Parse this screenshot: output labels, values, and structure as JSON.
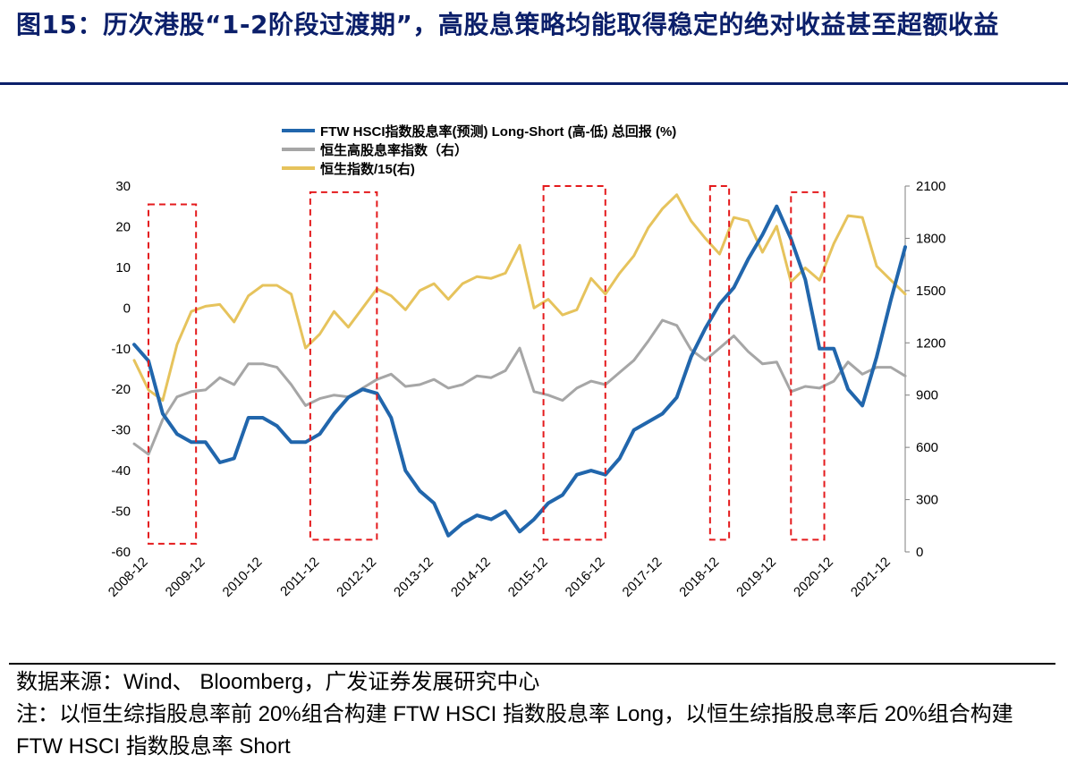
{
  "header": {
    "title": "图15：历次港股“1-2阶段过渡期”，高股息策略均能取得稳定的绝对收益甚至超额收益"
  },
  "footer": {
    "source": "数据来源：Wind、 Bloomberg，广发证券发展研究中心",
    "note": "注：以恒生综指股息率前 20%组合构建 FTW HSCI 指数股息率 Long，以恒生综指股息率后 20%组合构建 FTW HSCI 指数股息率 Short"
  },
  "colors": {
    "long_short": "#2166ac",
    "hsci_dividend_yield_index": "#a6a6a6",
    "hang_seng_div15": "#e6c35c",
    "highlight_box": "#e41a1c"
  },
  "chart_data": {
    "type": "line",
    "x_tick_labels": [
      "2008-12",
      "2009-12",
      "2010-12",
      "2011-12",
      "2012-12",
      "2013-12",
      "2014-12",
      "2015-12",
      "2016-12",
      "2017-12",
      "2018-12",
      "2019-12",
      "2020-12",
      "2021-12"
    ],
    "x_range": [
      "2008-09",
      "2022-03"
    ],
    "y_left": {
      "ylim": [
        -60,
        30
      ],
      "ticks": [
        30,
        20,
        10,
        0,
        -10,
        -20,
        -30,
        -40,
        -50,
        -60
      ]
    },
    "y_right": {
      "ylim": [
        0,
        2100
      ],
      "ticks": [
        2100,
        1800,
        1500,
        1200,
        900,
        600,
        300,
        0
      ]
    },
    "legend_position": "top-center",
    "series": [
      {
        "name": "FTW HSCI指数股息率(预测) Long-Short (高-低) 总回报 (%)",
        "axis": "left",
        "points": [
          [
            "2008-09",
            -9
          ],
          [
            "2008-12",
            -13
          ],
          [
            "2009-03",
            -26
          ],
          [
            "2009-06",
            -31
          ],
          [
            "2009-09",
            -33
          ],
          [
            "2009-12",
            -33
          ],
          [
            "2010-03",
            -38
          ],
          [
            "2010-06",
            -37
          ],
          [
            "2010-09",
            -27
          ],
          [
            "2010-12",
            -27
          ],
          [
            "2011-03",
            -29
          ],
          [
            "2011-06",
            -33
          ],
          [
            "2011-09",
            -33
          ],
          [
            "2011-12",
            -31
          ],
          [
            "2012-03",
            -26
          ],
          [
            "2012-06",
            -22
          ],
          [
            "2012-09",
            -20
          ],
          [
            "2012-12",
            -21
          ],
          [
            "2013-03",
            -27
          ],
          [
            "2013-06",
            -40
          ],
          [
            "2013-09",
            -45
          ],
          [
            "2013-12",
            -48
          ],
          [
            "2014-03",
            -56
          ],
          [
            "2014-06",
            -53
          ],
          [
            "2014-09",
            -51
          ],
          [
            "2014-12",
            -52
          ],
          [
            "2015-03",
            -50
          ],
          [
            "2015-06",
            -55
          ],
          [
            "2015-09",
            -52
          ],
          [
            "2015-12",
            -48
          ],
          [
            "2016-03",
            -46
          ],
          [
            "2016-06",
            -41
          ],
          [
            "2016-09",
            -40
          ],
          [
            "2016-12",
            -41
          ],
          [
            "2017-03",
            -37
          ],
          [
            "2017-06",
            -30
          ],
          [
            "2017-09",
            -28
          ],
          [
            "2017-12",
            -26
          ],
          [
            "2018-03",
            -22
          ],
          [
            "2018-06",
            -12
          ],
          [
            "2018-09",
            -5
          ],
          [
            "2018-12",
            1
          ],
          [
            "2019-03",
            5
          ],
          [
            "2019-06",
            12
          ],
          [
            "2019-09",
            18
          ],
          [
            "2019-12",
            25
          ],
          [
            "2020-03",
            17
          ],
          [
            "2020-06",
            7
          ],
          [
            "2020-09",
            -10
          ],
          [
            "2020-12",
            -10
          ],
          [
            "2021-03",
            -20
          ],
          [
            "2021-06",
            -24
          ],
          [
            "2021-09",
            -12
          ],
          [
            "2021-12",
            2
          ],
          [
            "2022-03",
            15
          ]
        ]
      },
      {
        "name": "恒生高股息率指数（右）",
        "axis": "right",
        "points": [
          [
            "2008-09",
            620
          ],
          [
            "2008-12",
            560
          ],
          [
            "2009-03",
            760
          ],
          [
            "2009-06",
            890
          ],
          [
            "2009-09",
            920
          ],
          [
            "2009-12",
            930
          ],
          [
            "2010-03",
            1000
          ],
          [
            "2010-06",
            960
          ],
          [
            "2010-09",
            1080
          ],
          [
            "2010-12",
            1080
          ],
          [
            "2011-03",
            1060
          ],
          [
            "2011-06",
            960
          ],
          [
            "2011-09",
            840
          ],
          [
            "2011-12",
            880
          ],
          [
            "2012-03",
            900
          ],
          [
            "2012-06",
            890
          ],
          [
            "2012-09",
            940
          ],
          [
            "2012-12",
            990
          ],
          [
            "2013-03",
            1020
          ],
          [
            "2013-06",
            950
          ],
          [
            "2013-09",
            960
          ],
          [
            "2013-12",
            990
          ],
          [
            "2014-03",
            940
          ],
          [
            "2014-06",
            960
          ],
          [
            "2014-09",
            1010
          ],
          [
            "2014-12",
            1000
          ],
          [
            "2015-03",
            1040
          ],
          [
            "2015-06",
            1170
          ],
          [
            "2015-09",
            920
          ],
          [
            "2015-12",
            900
          ],
          [
            "2016-03",
            870
          ],
          [
            "2016-06",
            940
          ],
          [
            "2016-09",
            980
          ],
          [
            "2016-12",
            960
          ],
          [
            "2017-03",
            1030
          ],
          [
            "2017-06",
            1100
          ],
          [
            "2017-09",
            1210
          ],
          [
            "2017-12",
            1330
          ],
          [
            "2018-03",
            1300
          ],
          [
            "2018-06",
            1160
          ],
          [
            "2018-09",
            1100
          ],
          [
            "2018-12",
            1170
          ],
          [
            "2019-03",
            1240
          ],
          [
            "2019-06",
            1150
          ],
          [
            "2019-09",
            1080
          ],
          [
            "2019-12",
            1090
          ],
          [
            "2020-03",
            920
          ],
          [
            "2020-06",
            950
          ],
          [
            "2020-09",
            940
          ],
          [
            "2020-12",
            980
          ],
          [
            "2021-03",
            1090
          ],
          [
            "2021-06",
            1020
          ],
          [
            "2021-09",
            1060
          ],
          [
            "2021-12",
            1060
          ],
          [
            "2022-03",
            1010
          ]
        ]
      },
      {
        "name": "恒生指数/15(右)",
        "axis": "right",
        "points": [
          [
            "2008-09",
            1100
          ],
          [
            "2008-12",
            930
          ],
          [
            "2009-03",
            870
          ],
          [
            "2009-06",
            1190
          ],
          [
            "2009-09",
            1380
          ],
          [
            "2009-12",
            1410
          ],
          [
            "2010-03",
            1420
          ],
          [
            "2010-06",
            1320
          ],
          [
            "2010-09",
            1470
          ],
          [
            "2010-12",
            1530
          ],
          [
            "2011-03",
            1530
          ],
          [
            "2011-06",
            1480
          ],
          [
            "2011-09",
            1170
          ],
          [
            "2011-12",
            1250
          ],
          [
            "2012-03",
            1380
          ],
          [
            "2012-06",
            1290
          ],
          [
            "2012-09",
            1400
          ],
          [
            "2012-12",
            1510
          ],
          [
            "2013-03",
            1470
          ],
          [
            "2013-06",
            1390
          ],
          [
            "2013-09",
            1500
          ],
          [
            "2013-12",
            1540
          ],
          [
            "2014-03",
            1450
          ],
          [
            "2014-06",
            1540
          ],
          [
            "2014-09",
            1580
          ],
          [
            "2014-12",
            1570
          ],
          [
            "2015-03",
            1600
          ],
          [
            "2015-06",
            1760
          ],
          [
            "2015-09",
            1400
          ],
          [
            "2015-12",
            1450
          ],
          [
            "2016-03",
            1360
          ],
          [
            "2016-06",
            1390
          ],
          [
            "2016-09",
            1570
          ],
          [
            "2016-12",
            1480
          ],
          [
            "2017-03",
            1600
          ],
          [
            "2017-06",
            1700
          ],
          [
            "2017-09",
            1860
          ],
          [
            "2017-12",
            1970
          ],
          [
            "2018-03",
            2050
          ],
          [
            "2018-06",
            1900
          ],
          [
            "2018-09",
            1800
          ],
          [
            "2018-12",
            1710
          ],
          [
            "2019-03",
            1920
          ],
          [
            "2019-06",
            1900
          ],
          [
            "2019-09",
            1720
          ],
          [
            "2019-12",
            1870
          ],
          [
            "2020-03",
            1550
          ],
          [
            "2020-06",
            1630
          ],
          [
            "2020-09",
            1560
          ],
          [
            "2020-12",
            1770
          ],
          [
            "2021-03",
            1930
          ],
          [
            "2021-06",
            1920
          ],
          [
            "2021-09",
            1640
          ],
          [
            "2021-12",
            1560
          ],
          [
            "2022-03",
            1480
          ]
        ]
      }
    ],
    "highlight_periods": [
      {
        "start": "2008-12",
        "end": "2009-10",
        "ytop": 25.5,
        "ybottom": -58
      },
      {
        "start": "2011-10",
        "end": "2012-12",
        "ytop": 28.5,
        "ybottom": -57
      },
      {
        "start": "2015-11",
        "end": "2016-12",
        "ytop": 30,
        "ybottom": -57
      },
      {
        "start": "2018-10",
        "end": "2019-02",
        "ytop": 30,
        "ybottom": -57
      },
      {
        "start": "2020-03",
        "end": "2020-10",
        "ytop": 28.5,
        "ybottom": -57
      }
    ]
  }
}
